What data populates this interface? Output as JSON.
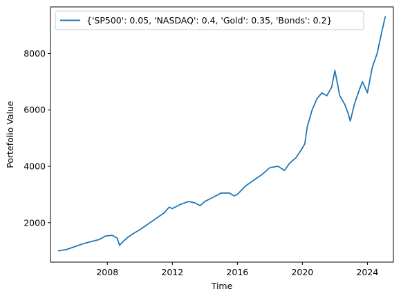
{
  "chart_data": {
    "type": "line",
    "title": "",
    "xlabel": "Time",
    "ylabel": "Portefolio Value",
    "grid": false,
    "legend_position": "top-left",
    "xlim": [
      2004.5,
      2025.6
    ],
    "ylim": [
      600,
      9650
    ],
    "x_ticks": [
      2008,
      2012,
      2016,
      2020,
      2024
    ],
    "x_tick_labels": [
      "2008",
      "2012",
      "2016",
      "2020",
      "2024"
    ],
    "y_ticks": [
      2000,
      4000,
      6000,
      8000
    ],
    "y_tick_labels": [
      "2000",
      "4000",
      "6000",
      "8000"
    ],
    "colors": {
      "series": "#1f77b4"
    },
    "series": [
      {
        "name": "{'SP500': 0.05, 'NASDAQ': 0.4, 'Gold': 0.35, 'Bonds': 0.2}",
        "x": [
          2005.0,
          2005.5,
          2006.0,
          2006.5,
          2007.0,
          2007.5,
          2007.9,
          2008.3,
          2008.6,
          2008.75,
          2009.0,
          2009.3,
          2009.7,
          2010.0,
          2010.5,
          2011.0,
          2011.5,
          2011.8,
          2012.0,
          2012.5,
          2013.0,
          2013.4,
          2013.7,
          2014.0,
          2014.5,
          2015.0,
          2015.5,
          2015.8,
          2016.0,
          2016.5,
          2017.0,
          2017.5,
          2018.0,
          2018.5,
          2018.9,
          2019.2,
          2019.6,
          2019.95,
          2020.15,
          2020.3,
          2020.6,
          2020.9,
          2021.2,
          2021.5,
          2021.8,
          2022.0,
          2022.3,
          2022.6,
          2022.8,
          2022.95,
          2023.2,
          2023.5,
          2023.7,
          2024.0,
          2024.3,
          2024.6,
          2024.9,
          2025.1
        ],
        "y": [
          1000,
          1050,
          1150,
          1250,
          1330,
          1400,
          1530,
          1550,
          1450,
          1200,
          1350,
          1500,
          1650,
          1750,
          1950,
          2150,
          2350,
          2550,
          2500,
          2650,
          2750,
          2700,
          2600,
          2750,
          2900,
          3050,
          3050,
          2950,
          3000,
          3300,
          3500,
          3700,
          3950,
          4000,
          3850,
          4100,
          4300,
          4600,
          4800,
          5400,
          6000,
          6400,
          6600,
          6500,
          6800,
          7400,
          6500,
          6200,
          5900,
          5600,
          6200,
          6700,
          7000,
          6600,
          7500,
          8000,
          8800,
          9300
        ]
      }
    ]
  }
}
